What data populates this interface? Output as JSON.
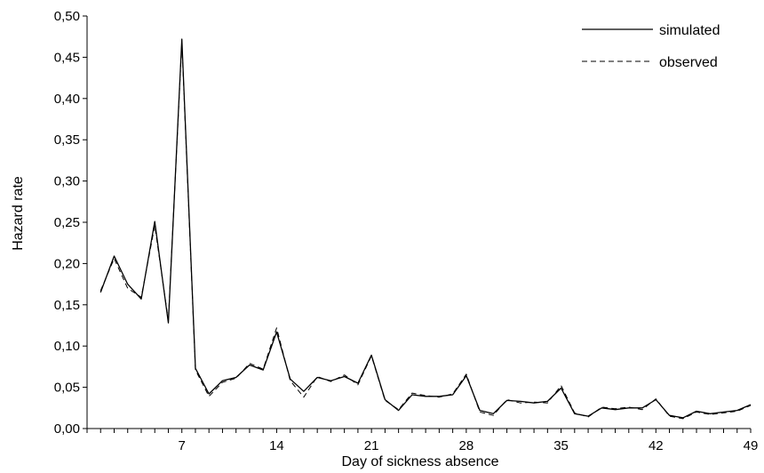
{
  "chart_data": {
    "type": "line",
    "xlabel": "Day of sickness absence",
    "ylabel": "Hazard rate",
    "xlim": [
      0,
      49
    ],
    "ylim": [
      0,
      0.5
    ],
    "x_ticks": [
      7,
      14,
      21,
      28,
      35,
      42,
      49
    ],
    "y_ticks": [
      "0,00",
      "0,05",
      "0,10",
      "0,15",
      "0,20",
      "0,25",
      "0,30",
      "0,35",
      "0,40",
      "0,45",
      "0,50"
    ],
    "legend_position": "top-right",
    "grid": false,
    "x": [
      1,
      2,
      3,
      4,
      5,
      6,
      7,
      8,
      9,
      10,
      11,
      12,
      13,
      14,
      15,
      16,
      17,
      18,
      19,
      20,
      21,
      22,
      23,
      24,
      25,
      26,
      27,
      28,
      29,
      30,
      31,
      32,
      33,
      34,
      35,
      36,
      37,
      38,
      39,
      40,
      41,
      42,
      43,
      44,
      45,
      46,
      47,
      48,
      49
    ],
    "series": [
      {
        "name": "simulated",
        "style": "solid",
        "values": [
          0.165,
          0.209,
          0.175,
          0.157,
          0.251,
          0.128,
          0.472,
          0.073,
          0.042,
          0.058,
          0.062,
          0.077,
          0.071,
          0.117,
          0.06,
          0.045,
          0.062,
          0.058,
          0.063,
          0.055,
          0.089,
          0.035,
          0.022,
          0.041,
          0.039,
          0.039,
          0.041,
          0.064,
          0.022,
          0.018,
          0.034,
          0.033,
          0.031,
          0.033,
          0.049,
          0.018,
          0.015,
          0.025,
          0.023,
          0.025,
          0.025,
          0.035,
          0.016,
          0.013,
          0.021,
          0.018,
          0.02,
          0.022,
          0.029
        ]
      },
      {
        "name": "observed",
        "style": "dashed",
        "values": [
          0.167,
          0.206,
          0.17,
          0.159,
          0.246,
          0.131,
          0.468,
          0.071,
          0.039,
          0.056,
          0.061,
          0.079,
          0.072,
          0.122,
          0.058,
          0.038,
          0.063,
          0.057,
          0.065,
          0.053,
          0.088,
          0.034,
          0.023,
          0.043,
          0.04,
          0.038,
          0.042,
          0.066,
          0.02,
          0.016,
          0.035,
          0.031,
          0.032,
          0.031,
          0.052,
          0.019,
          0.014,
          0.026,
          0.024,
          0.026,
          0.023,
          0.036,
          0.015,
          0.012,
          0.02,
          0.017,
          0.019,
          0.021,
          0.028
        ]
      }
    ]
  }
}
